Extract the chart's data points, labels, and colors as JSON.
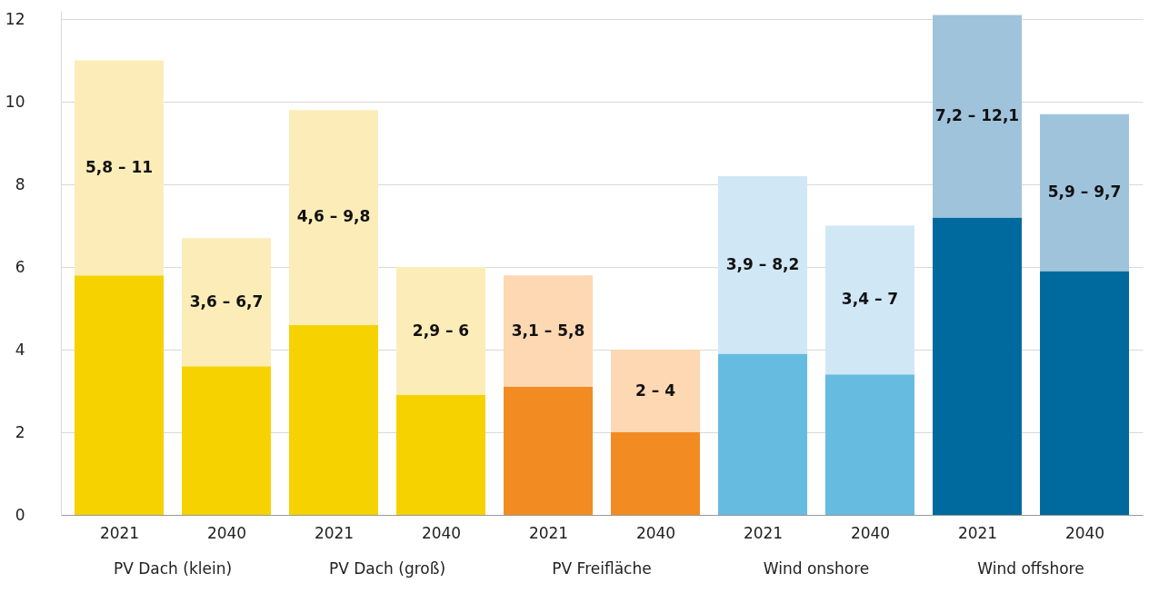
{
  "chart_data": {
    "type": "bar",
    "stacked": true,
    "categories": [
      "2021",
      "2040",
      "2021",
      "2040",
      "2021",
      "2040",
      "2021",
      "2040",
      "2021",
      "2040"
    ],
    "series": [
      {
        "colors": [
          "#f5d200",
          "#f5d200",
          "#f5d200",
          "#f5d200",
          "#f28c22",
          "#f28c22",
          "#65bbe0",
          "#65bbe0",
          "#006a9e",
          "#006a9e"
        ],
        "values": [
          5.8,
          3.6,
          4.6,
          2.9,
          3.1,
          2,
          3.9,
          3.4,
          7.2,
          5.9
        ]
      },
      {
        "colors": [
          "#fcedb8",
          "#fcedb8",
          "#fcedb8",
          "#fcedb8",
          "#fdd8b2",
          "#fdd8b2",
          "#d0e7f5",
          "#d0e7f5",
          "#a0c3dc",
          "#a0c3dc"
        ],
        "values": [
          5.2,
          3.1,
          5.2,
          3.1,
          2.7,
          2,
          4.3,
          3.6,
          4.9,
          3.8
        ]
      }
    ],
    "ylim": [
      0,
      12.2
    ],
    "yticks": [
      0,
      2,
      4,
      6,
      8,
      10,
      12
    ],
    "grid": "y",
    "annotations": [
      "5,8 – 11",
      "3,6 – 6,7",
      "4,6 – 9,8",
      "2,9 – 6",
      "3,1 – 5,8",
      "2 – 4",
      "3,9 – 8,2",
      "3,4 – 7",
      "7,2 – 12,1",
      "5,9 – 9,7",
      "PV Dach (klein)",
      "PV Dach (groß)",
      "PV Freifläche",
      "Wind onshore",
      "Wind offshore"
    ]
  }
}
